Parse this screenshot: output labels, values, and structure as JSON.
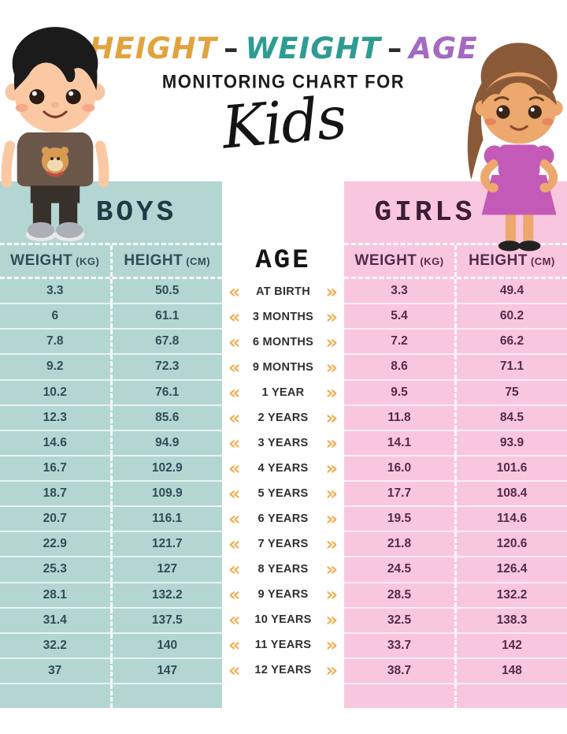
{
  "title": {
    "word1": "HEIGHT",
    "separator1": "–",
    "word2": "WEIGHT",
    "separator2": "–",
    "word3": "AGE",
    "subtitle": "MONITORING CHART FOR",
    "script_word": "Kids"
  },
  "colors": {
    "boys_bg": "#b3d6d3",
    "girls_bg": "#f9c6df",
    "boys_text": "#2f4d57",
    "girls_text": "#532b4b",
    "title_height": "#e2a33e",
    "title_weight": "#2f9c92",
    "title_age": "#a469c0",
    "chevron": "#f0b054"
  },
  "boys_table": {
    "title": "BOYS",
    "columns": [
      {
        "label": "WEIGHT",
        "unit": "(KG)"
      },
      {
        "label": "HEIGHT",
        "unit": "(CM)"
      }
    ],
    "weight_kg": [
      "3.3",
      "6",
      "7.8",
      "9.2",
      "10.2",
      "12.3",
      "14.6",
      "16.7",
      "18.7",
      "20.7",
      "22.9",
      "25.3",
      "28.1",
      "31.4",
      "32.2",
      "37"
    ],
    "height_cm": [
      "50.5",
      "61.1",
      "67.8",
      "72.3",
      "76.1",
      "85.6",
      "94.9",
      "102.9",
      "109.9",
      "116.1",
      "121.7",
      "127",
      "132.2",
      "137.5",
      "140",
      "147"
    ]
  },
  "girls_table": {
    "title": "GIRLS",
    "columns": [
      {
        "label": "WEIGHT",
        "unit": "(KG)"
      },
      {
        "label": "HEIGHT",
        "unit": "(CM)"
      }
    ],
    "weight_kg": [
      "3.3",
      "5.4",
      "7.2",
      "8.6",
      "9.5",
      "11.8",
      "14.1",
      "16.0",
      "17.7",
      "19.5",
      "21.8",
      "24.5",
      "28.5",
      "32.5",
      "33.7",
      "38.7"
    ],
    "height_cm": [
      "49.4",
      "60.2",
      "66.2",
      "71.1",
      "75",
      "84.5",
      "93.9",
      "101.6",
      "108.4",
      "114.6",
      "120.6",
      "126.4",
      "132.2",
      "138.3",
      "142",
      "148"
    ]
  },
  "age_column": {
    "header": "AGE",
    "left_chevron": "«",
    "right_chevron": "»",
    "labels": [
      "AT BIRTH",
      "3 MONTHS",
      "6 MONTHS",
      "9 MONTHS",
      "1 YEAR",
      "2 YEARS",
      "3 YEARS",
      "4 YEARS",
      "5 YEARS",
      "6 YEARS",
      "7 YEARS",
      "8 YEARS",
      "9 YEARS",
      "10 YEARS",
      "11 YEARS",
      "12 YEARS"
    ]
  },
  "chart_data": {
    "type": "table",
    "title": "HEIGHT - WEIGHT - AGE MONITORING CHART FOR Kids",
    "categories": [
      "AT BIRTH",
      "3 MONTHS",
      "6 MONTHS",
      "9 MONTHS",
      "1 YEAR",
      "2 YEARS",
      "3 YEARS",
      "4 YEARS",
      "5 YEARS",
      "6 YEARS",
      "7 YEARS",
      "8 YEARS",
      "9 YEARS",
      "10 YEARS",
      "11 YEARS",
      "12 YEARS"
    ],
    "series": [
      {
        "name": "Boys Weight (kg)",
        "values": [
          3.3,
          6,
          7.8,
          9.2,
          10.2,
          12.3,
          14.6,
          16.7,
          18.7,
          20.7,
          22.9,
          25.3,
          28.1,
          31.4,
          32.2,
          37
        ]
      },
      {
        "name": "Boys Height (cm)",
        "values": [
          50.5,
          61.1,
          67.8,
          72.3,
          76.1,
          85.6,
          94.9,
          102.9,
          109.9,
          116.1,
          121.7,
          127,
          132.2,
          137.5,
          140,
          147
        ]
      },
      {
        "name": "Girls Weight (kg)",
        "values": [
          3.3,
          5.4,
          7.2,
          8.6,
          9.5,
          11.8,
          14.1,
          16.0,
          17.7,
          19.5,
          21.8,
          24.5,
          28.5,
          32.5,
          33.7,
          38.7
        ]
      },
      {
        "name": "Girls Height (cm)",
        "values": [
          49.4,
          60.2,
          66.2,
          71.1,
          75,
          84.5,
          93.9,
          101.6,
          108.4,
          114.6,
          120.6,
          126.4,
          132.2,
          138.3,
          142,
          148
        ]
      }
    ]
  }
}
